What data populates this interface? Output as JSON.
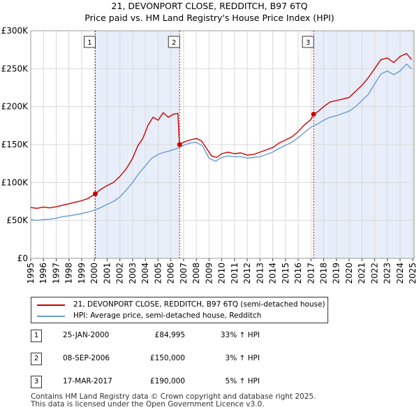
{
  "title": {
    "line1": "21, DEVONPORT CLOSE, REDDITCH, B97 6TQ",
    "line2": "Price paid vs. HM Land Registry's House Price Index (HPI)"
  },
  "chart_data": {
    "type": "line",
    "ylim": [
      0,
      300000
    ],
    "xlim": [
      1995,
      2025.1
    ],
    "y_ticks": [
      {
        "value": 0,
        "label": "£0"
      },
      {
        "value": 50000,
        "label": "£50K"
      },
      {
        "value": 100000,
        "label": "£100K"
      },
      {
        "value": 150000,
        "label": "£150K"
      },
      {
        "value": 200000,
        "label": "£200K"
      },
      {
        "value": 250000,
        "label": "£250K"
      },
      {
        "value": 300000,
        "label": "£300K"
      }
    ],
    "x_ticks": [
      "1995",
      "1996",
      "1997",
      "1998",
      "1999",
      "2000",
      "2001",
      "2002",
      "2003",
      "2004",
      "2005",
      "2006",
      "2007",
      "2008",
      "2009",
      "2010",
      "2011",
      "2012",
      "2013",
      "2014",
      "2015",
      "2016",
      "2017",
      "2018",
      "2019",
      "2020",
      "2021",
      "2022",
      "2023",
      "2024",
      "2025"
    ],
    "grid": true,
    "series": [
      {
        "name": "21, DEVONPORT CLOSE, REDDITCH, B97 6TQ (semi-detached house)",
        "color": "#cc0000",
        "points": [
          [
            1995.0,
            67000
          ],
          [
            1995.5,
            66000
          ],
          [
            1996.0,
            67500
          ],
          [
            1996.5,
            66500
          ],
          [
            1997.0,
            68000
          ],
          [
            1997.5,
            70000
          ],
          [
            1998.0,
            72000
          ],
          [
            1998.5,
            74000
          ],
          [
            1999.0,
            76000
          ],
          [
            1999.5,
            79000
          ],
          [
            2000.07,
            84995
          ],
          [
            2000.5,
            91000
          ],
          [
            2001.0,
            96000
          ],
          [
            2001.5,
            100000
          ],
          [
            2002.0,
            108000
          ],
          [
            2002.5,
            118000
          ],
          [
            2003.0,
            132000
          ],
          [
            2003.4,
            148000
          ],
          [
            2003.8,
            158000
          ],
          [
            2004.2,
            175000
          ],
          [
            2004.6,
            186000
          ],
          [
            2005.0,
            182000
          ],
          [
            2005.4,
            192000
          ],
          [
            2005.8,
            186000
          ],
          [
            2006.2,
            190000
          ],
          [
            2006.55,
            191000
          ],
          [
            2006.68,
            150000
          ],
          [
            2007.0,
            153000
          ],
          [
            2007.5,
            156000
          ],
          [
            2008.0,
            158000
          ],
          [
            2008.4,
            155000
          ],
          [
            2008.8,
            145000
          ],
          [
            2009.2,
            135000
          ],
          [
            2009.6,
            133000
          ],
          [
            2010.0,
            138000
          ],
          [
            2010.5,
            140000
          ],
          [
            2011.0,
            138000
          ],
          [
            2011.5,
            139000
          ],
          [
            2012.0,
            136000
          ],
          [
            2012.5,
            137000
          ],
          [
            2013.0,
            140000
          ],
          [
            2013.5,
            143000
          ],
          [
            2014.0,
            146000
          ],
          [
            2014.5,
            152000
          ],
          [
            2015.0,
            156000
          ],
          [
            2015.5,
            160000
          ],
          [
            2016.0,
            167000
          ],
          [
            2016.5,
            176000
          ],
          [
            2017.0,
            183000
          ],
          [
            2017.21,
            190000
          ],
          [
            2017.6,
            194000
          ],
          [
            2018.0,
            200000
          ],
          [
            2018.5,
            206000
          ],
          [
            2019.0,
            208000
          ],
          [
            2019.5,
            210000
          ],
          [
            2020.0,
            212000
          ],
          [
            2020.5,
            220000
          ],
          [
            2021.0,
            228000
          ],
          [
            2021.5,
            238000
          ],
          [
            2022.0,
            250000
          ],
          [
            2022.5,
            262000
          ],
          [
            2023.0,
            264000
          ],
          [
            2023.5,
            258000
          ],
          [
            2024.0,
            266000
          ],
          [
            2024.5,
            270000
          ],
          [
            2024.9,
            262000
          ]
        ]
      },
      {
        "name": "HPI: Average price, semi-detached house, Redditch",
        "color": "#6a9ad4",
        "points": [
          [
            1995.0,
            51000
          ],
          [
            1995.5,
            50000
          ],
          [
            1996.0,
            51000
          ],
          [
            1996.5,
            51500
          ],
          [
            1997.0,
            53000
          ],
          [
            1997.5,
            55000
          ],
          [
            1998.0,
            56000
          ],
          [
            1998.5,
            57500
          ],
          [
            1999.0,
            59000
          ],
          [
            1999.5,
            61000
          ],
          [
            2000.0,
            63500
          ],
          [
            2000.5,
            67000
          ],
          [
            2001.0,
            71000
          ],
          [
            2001.5,
            75000
          ],
          [
            2002.0,
            81000
          ],
          [
            2002.5,
            90000
          ],
          [
            2003.0,
            100000
          ],
          [
            2003.5,
            112000
          ],
          [
            2004.0,
            122000
          ],
          [
            2004.5,
            132000
          ],
          [
            2005.0,
            137000
          ],
          [
            2005.5,
            140000
          ],
          [
            2006.0,
            142000
          ],
          [
            2006.5,
            145000
          ],
          [
            2007.0,
            149000
          ],
          [
            2007.5,
            152000
          ],
          [
            2008.0,
            153000
          ],
          [
            2008.5,
            148000
          ],
          [
            2009.0,
            132000
          ],
          [
            2009.5,
            128000
          ],
          [
            2010.0,
            133000
          ],
          [
            2010.5,
            135000
          ],
          [
            2011.0,
            134000
          ],
          [
            2011.5,
            134000
          ],
          [
            2012.0,
            132000
          ],
          [
            2012.5,
            133000
          ],
          [
            2013.0,
            134000
          ],
          [
            2013.5,
            137000
          ],
          [
            2014.0,
            140000
          ],
          [
            2014.5,
            145000
          ],
          [
            2015.0,
            149000
          ],
          [
            2015.5,
            153000
          ],
          [
            2016.0,
            159000
          ],
          [
            2016.5,
            166000
          ],
          [
            2017.0,
            173000
          ],
          [
            2017.5,
            177000
          ],
          [
            2018.0,
            182000
          ],
          [
            2018.5,
            186000
          ],
          [
            2019.0,
            188000
          ],
          [
            2019.5,
            191000
          ],
          [
            2020.0,
            194000
          ],
          [
            2020.5,
            200000
          ],
          [
            2021.0,
            208000
          ],
          [
            2021.5,
            216000
          ],
          [
            2022.0,
            230000
          ],
          [
            2022.5,
            243000
          ],
          [
            2023.0,
            247000
          ],
          [
            2023.5,
            242000
          ],
          [
            2024.0,
            247000
          ],
          [
            2024.5,
            256000
          ],
          [
            2024.9,
            250000
          ]
        ]
      }
    ],
    "sales": [
      {
        "num": "1",
        "x": 2000.07,
        "y": 84995
      },
      {
        "num": "2",
        "x": 2006.69,
        "y": 150000
      },
      {
        "num": "3",
        "x": 2017.21,
        "y": 190000
      }
    ],
    "shaded_periods": [
      [
        2000.07,
        2006.69
      ],
      [
        2017.21,
        2025.1
      ]
    ]
  },
  "legend": {
    "property": "21, DEVONPORT CLOSE, REDDITCH, B97 6TQ (semi-detached house)",
    "hpi": "HPI: Average price, semi-detached house, Redditch"
  },
  "sales_table": [
    {
      "num": "1",
      "date": "25-JAN-2000",
      "price": "£84,995",
      "hpi": "33% ↑ HPI"
    },
    {
      "num": "2",
      "date": "08-SEP-2006",
      "price": "£150,000",
      "hpi": "3% ↑ HPI"
    },
    {
      "num": "3",
      "date": "17-MAR-2017",
      "price": "£190,000",
      "hpi": "5% ↑ HPI"
    }
  ],
  "footer": {
    "line1": "Contains HM Land Registry data © Crown copyright and database right 2025.",
    "line2": "This data is licensed under the Open Government Licence v3.0."
  },
  "colors": {
    "property_line": "#cc0000",
    "hpi_line": "#6a9ad4",
    "shade": "#e8eef9",
    "grid": "#d9d9d9",
    "vline": "#cc0000"
  }
}
